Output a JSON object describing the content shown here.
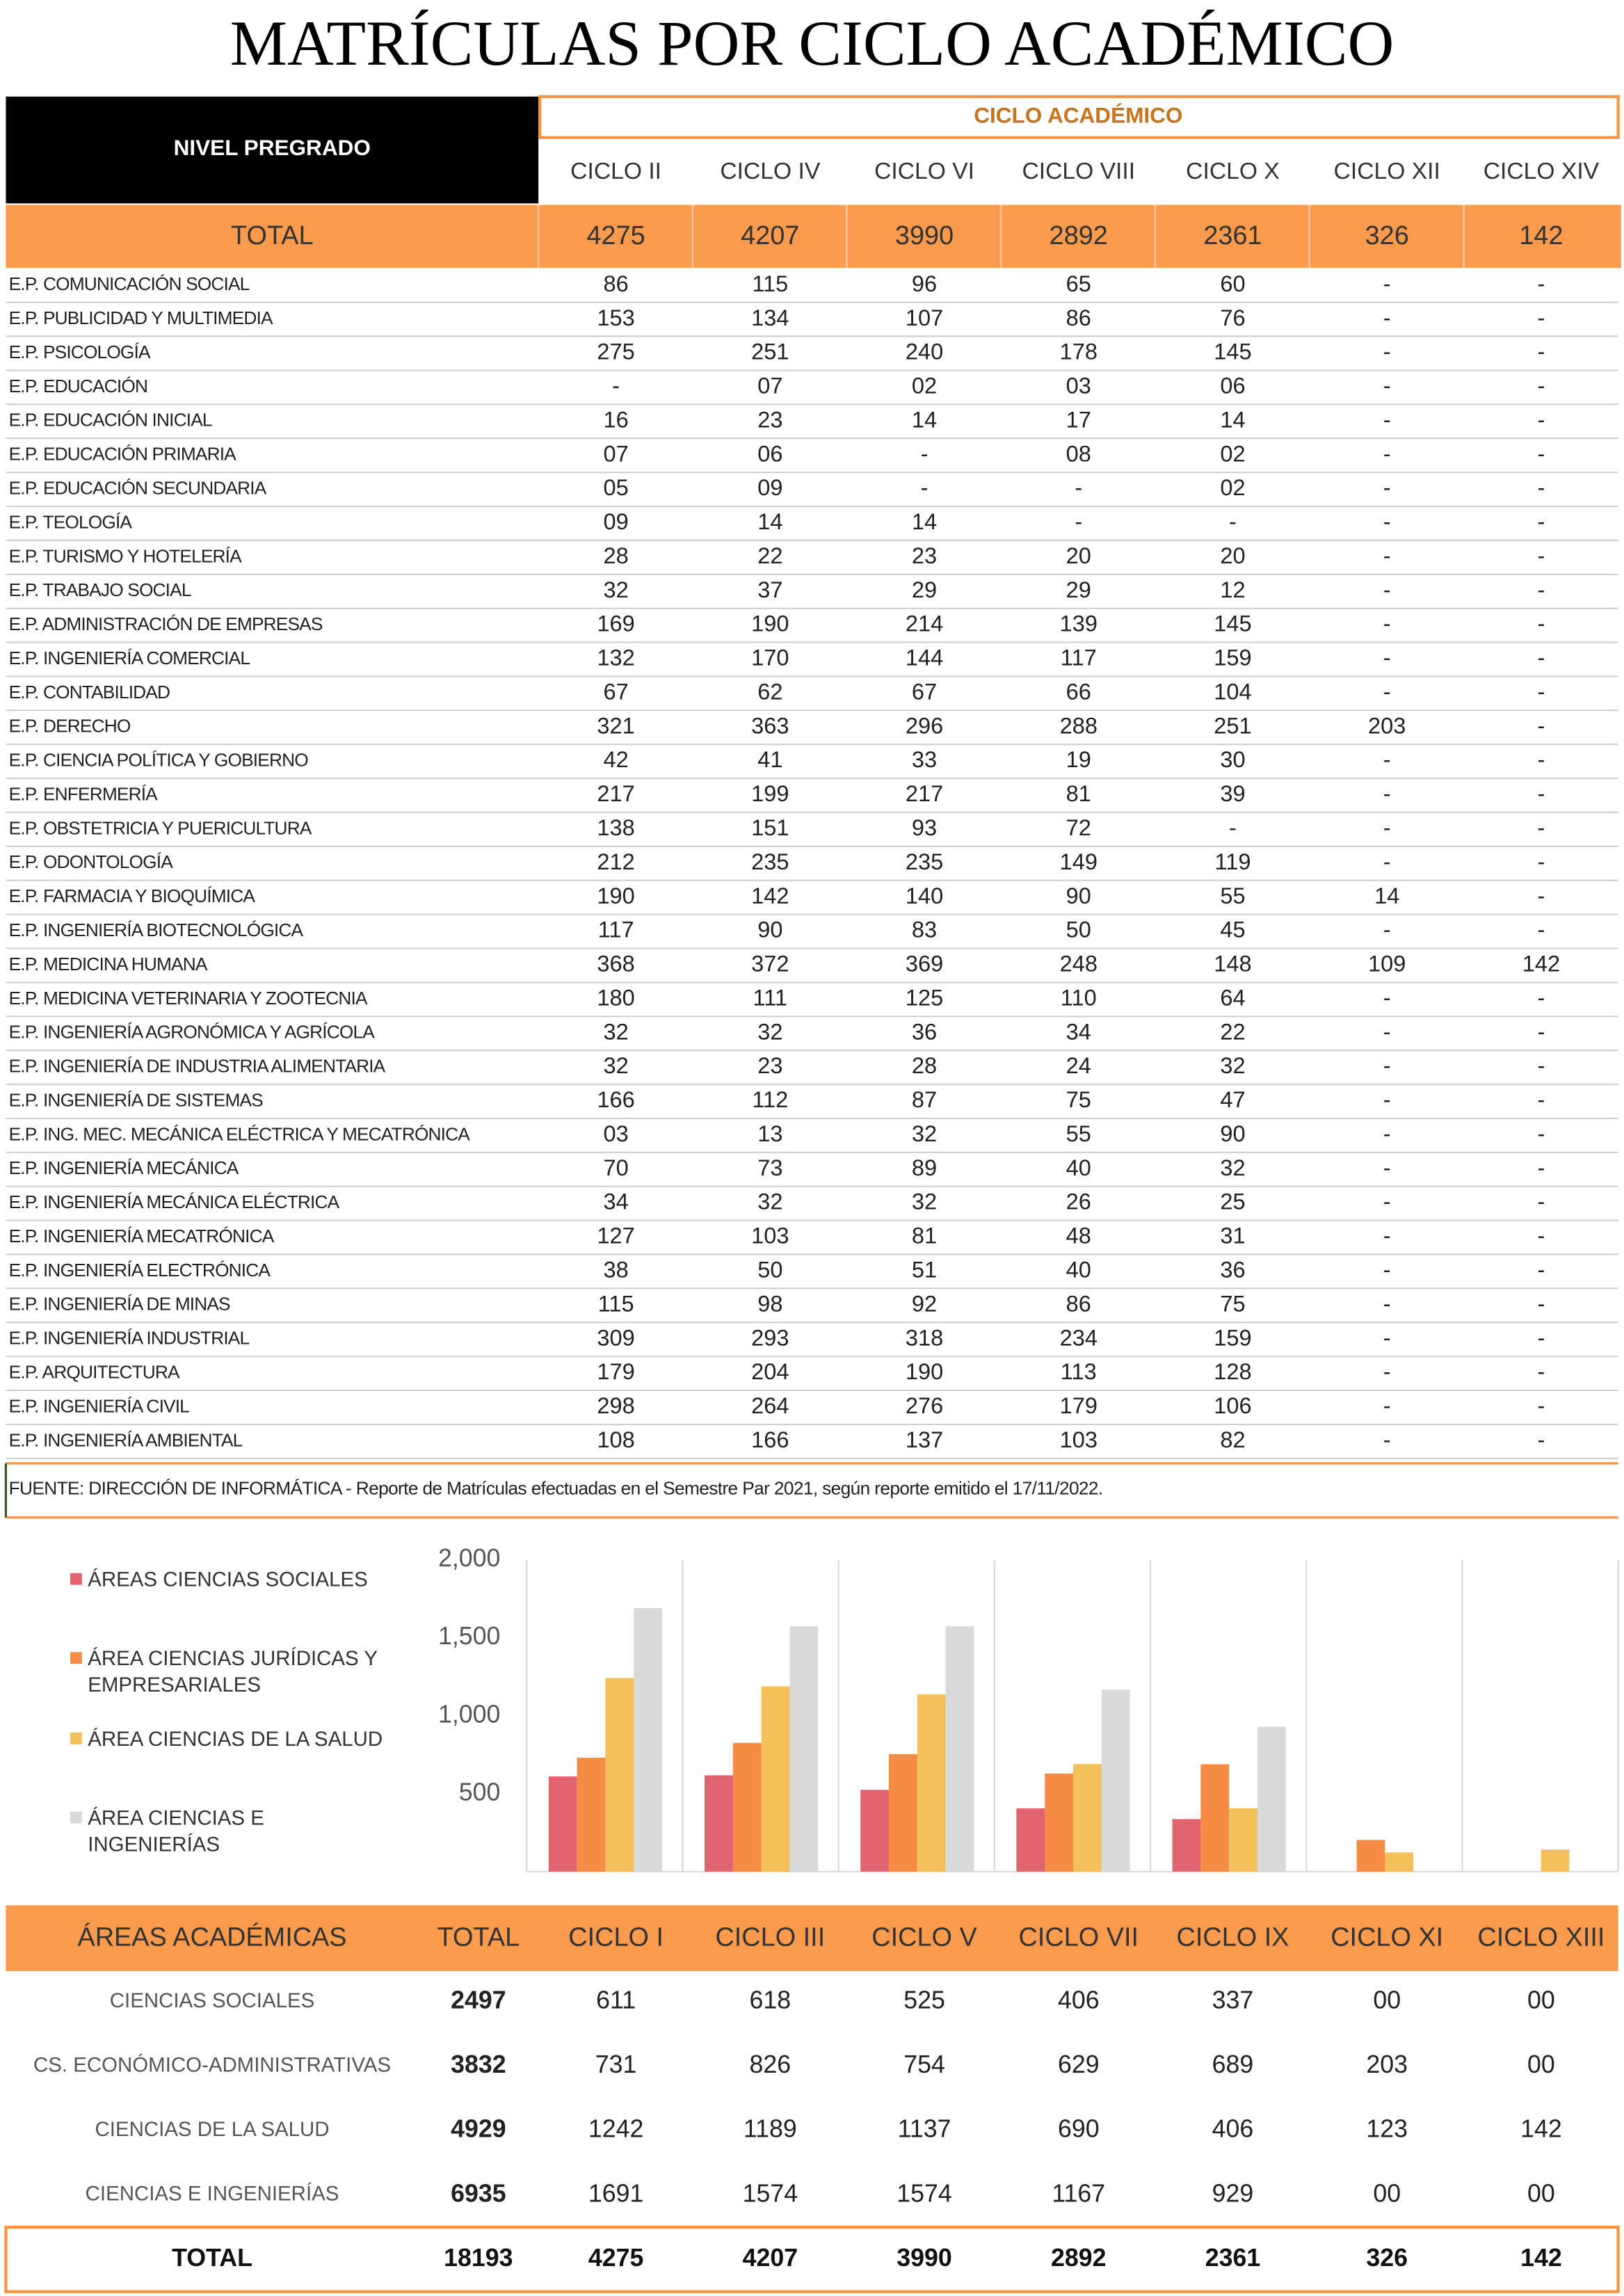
{
  "title": "MATRÍCULAS POR CICLO ACADÉMICO",
  "enrollment_table": {
    "level_header": "NIVEL  PREGRADO",
    "group_header": "CICLO  ACADÉMICO",
    "columns": [
      "CICLO II",
      "CICLO IV",
      "CICLO VI",
      "CICLO VIII",
      "CICLO X",
      "CICLO XII",
      "CICLO XIV"
    ],
    "total": {
      "label": "TOTAL",
      "values": [
        "4275",
        "4207",
        "3990",
        "2892",
        "2361",
        "326",
        "142"
      ]
    },
    "rows": [
      [
        "E.P. COMUNICACIÓN SOCIAL",
        "86",
        "115",
        "96",
        "65",
        "60",
        "-",
        "-"
      ],
      [
        "E.P. PUBLICIDAD Y MULTIMEDIA",
        "153",
        "134",
        "107",
        "86",
        "76",
        "-",
        "-"
      ],
      [
        "E.P. PSICOLOGÍA",
        "275",
        "251",
        "240",
        "178",
        "145",
        "-",
        "-"
      ],
      [
        "E.P. EDUCACIÓN",
        "-",
        "07",
        "02",
        "03",
        "06",
        "-",
        "-"
      ],
      [
        "E.P. EDUCACIÓN INICIAL",
        "16",
        "23",
        "14",
        "17",
        "14",
        "-",
        "-"
      ],
      [
        "E.P. EDUCACIÓN PRIMARIA",
        "07",
        "06",
        "-",
        "08",
        "02",
        "-",
        "-"
      ],
      [
        "E.P. EDUCACIÓN SECUNDARIA",
        "05",
        "09",
        "-",
        "-",
        "02",
        "-",
        "-"
      ],
      [
        "E.P. TEOLOGÍA",
        "09",
        "14",
        "14",
        "-",
        "-",
        "-",
        "-"
      ],
      [
        "E.P. TURISMO Y HOTELERÍA",
        "28",
        "22",
        "23",
        "20",
        "20",
        "-",
        "-"
      ],
      [
        "E.P. TRABAJO SOCIAL",
        "32",
        "37",
        "29",
        "29",
        "12",
        "-",
        "-"
      ],
      [
        "E.P. ADMINISTRACIÓN DE EMPRESAS",
        "169",
        "190",
        "214",
        "139",
        "145",
        "-",
        "-"
      ],
      [
        "E.P. INGENIERÍA COMERCIAL",
        "132",
        "170",
        "144",
        "117",
        "159",
        "-",
        "-"
      ],
      [
        "E.P. CONTABILIDAD",
        "67",
        "62",
        "67",
        "66",
        "104",
        "-",
        "-"
      ],
      [
        "E.P. DERECHO",
        "321",
        "363",
        "296",
        "288",
        "251",
        "203",
        "-"
      ],
      [
        "E.P. CIENCIA POLÍTICA Y GOBIERNO",
        "42",
        "41",
        "33",
        "19",
        "30",
        "-",
        "-"
      ],
      [
        "E.P. ENFERMERÍA",
        "217",
        "199",
        "217",
        "81",
        "39",
        "-",
        "-"
      ],
      [
        "E.P. OBSTETRICIA Y PUERICULTURA",
        "138",
        "151",
        "93",
        "72",
        "-",
        "-",
        "-"
      ],
      [
        "E.P. ODONTOLOGÍA",
        "212",
        "235",
        "235",
        "149",
        "119",
        "-",
        "-"
      ],
      [
        "E.P. FARMACIA Y BIOQUÍMICA",
        "190",
        "142",
        "140",
        "90",
        "55",
        "14",
        "-"
      ],
      [
        "E.P. INGENIERÍA BIOTECNOLÓGICA",
        "117",
        "90",
        "83",
        "50",
        "45",
        "-",
        "-"
      ],
      [
        "E.P. MEDICINA HUMANA",
        "368",
        "372",
        "369",
        "248",
        "148",
        "109",
        "142"
      ],
      [
        "E.P. MEDICINA VETERINARIA Y ZOOTECNIA",
        "180",
        "111",
        "125",
        "110",
        "64",
        "-",
        "-"
      ],
      [
        "E.P. INGENIERÍA AGRONÓMICA Y AGRÍCOLA",
        "32",
        "32",
        "36",
        "34",
        "22",
        "-",
        "-"
      ],
      [
        "E.P. INGENIERÍA DE INDUSTRIA ALIMENTARIA",
        "32",
        "23",
        "28",
        "24",
        "32",
        "-",
        "-"
      ],
      [
        "E.P. INGENIERÍA DE SISTEMAS",
        "166",
        "112",
        "87",
        "75",
        "47",
        "-",
        "-"
      ],
      [
        "E.P. ING. MEC. MECÁNICA ELÉCTRICA Y MECATRÓNICA",
        "03",
        "13",
        "32",
        "55",
        "90",
        "-",
        "-"
      ],
      [
        "E.P. INGENIERÍA MECÁNICA",
        "70",
        "73",
        "89",
        "40",
        "32",
        "-",
        "-"
      ],
      [
        "E.P. INGENIERÍA MECÁNICA ELÉCTRICA",
        "34",
        "32",
        "32",
        "26",
        "25",
        "-",
        "-"
      ],
      [
        "E.P. INGENIERÍA MECATRÓNICA",
        "127",
        "103",
        "81",
        "48",
        "31",
        "-",
        "-"
      ],
      [
        "E.P. INGENIERÍA ELECTRÓNICA",
        "38",
        "50",
        "51",
        "40",
        "36",
        "-",
        "-"
      ],
      [
        "E.P. INGENIERÍA DE MINAS",
        "115",
        "98",
        "92",
        "86",
        "75",
        "-",
        "-"
      ],
      [
        "E.P. INGENIERÍA INDUSTRIAL",
        "309",
        "293",
        "318",
        "234",
        "159",
        "-",
        "-"
      ],
      [
        "E.P. ARQUITECTURA",
        "179",
        "204",
        "190",
        "113",
        "128",
        "-",
        "-"
      ],
      [
        "E.P. INGENIERÍA CIVIL",
        "298",
        "264",
        "276",
        "179",
        "106",
        "-",
        "-"
      ],
      [
        "E.P. INGENIERÍA AMBIENTAL",
        "108",
        "166",
        "137",
        "103",
        "82",
        "-",
        "-"
      ]
    ]
  },
  "source_note": "FUENTE: DIRECCIÓN DE INFORMÁTICA - Reporte de Matrículas efectuadas en el Semestre Par 2021, según reporte emitido el 17/11/2022.",
  "chart_data": {
    "type": "bar",
    "categories": [
      null,
      null,
      null,
      null,
      null,
      null,
      null
    ],
    "series": [
      {
        "name": "ÁREAS CIENCIAS SOCIALES",
        "color": "#e0646f",
        "values": [
          611,
          618,
          525,
          406,
          337,
          0,
          0
        ]
      },
      {
        "name": "ÁREA CIENCIAS JURÍDICAS Y EMPRESARIALES",
        "color": "#f68b45",
        "values": [
          731,
          826,
          754,
          629,
          689,
          203,
          0
        ]
      },
      {
        "name": "ÁREA CIENCIAS DE LA SALUD",
        "color": "#f3c05a",
        "values": [
          1242,
          1189,
          1137,
          690,
          406,
          123,
          142
        ]
      },
      {
        "name": "ÁREA CIENCIAS E INGENIERÍAS",
        "color": "#d9d9d9",
        "values": [
          1691,
          1574,
          1574,
          1167,
          929,
          0,
          0
        ]
      }
    ],
    "ylim": [
      0,
      2000
    ],
    "yticks": [
      500,
      {
        "value": 1000,
        "label": "1,000"
      },
      {
        "value": 1500,
        "label": "1,500"
      },
      {
        "value": 2000,
        "label": "2,000"
      }
    ],
    "legend": "left"
  },
  "areas_table": {
    "header": [
      "ÁREAS ACADÉMICAS",
      "TOTAL",
      "CICLO I",
      "CICLO III",
      "CICLO V",
      "CICLO VII",
      "CICLO IX",
      "CICLO XI",
      "CICLO XIII"
    ],
    "rows": [
      [
        "CIENCIAS SOCIALES",
        "2497",
        "611",
        "618",
        "525",
        "406",
        "337",
        "00",
        "00"
      ],
      [
        "CS. ECONÓMICO-ADMINISTRATIVAS",
        "3832",
        "731",
        "826",
        "754",
        "629",
        "689",
        "203",
        "00"
      ],
      [
        "CIENCIAS DE LA SALUD",
        "4929",
        "1242",
        "1189",
        "1137",
        "690",
        "406",
        "123",
        "142"
      ],
      [
        "CIENCIAS E INGENIERÍAS",
        "6935",
        "1691",
        "1574",
        "1574",
        "1167",
        "929",
        "00",
        "00"
      ]
    ],
    "total": [
      "TOTAL",
      "18193",
      "4275",
      "4207",
      "3990",
      "2892",
      "2361",
      "326",
      "142"
    ]
  }
}
